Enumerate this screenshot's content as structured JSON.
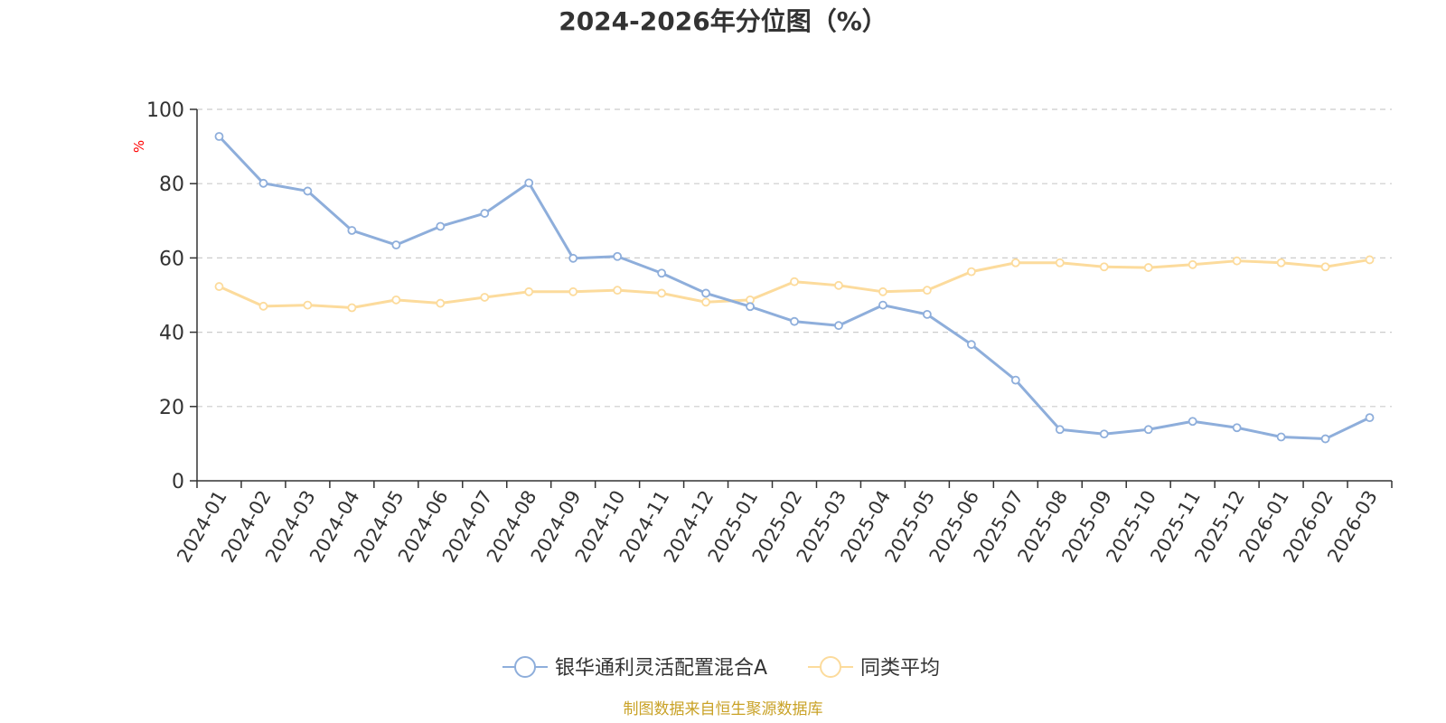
{
  "title": "2024-2026年分位图（%）",
  "source": "制图数据来自恒生聚源数据库",
  "colors": {
    "series1": "#8eaedb",
    "series2": "#fcdb9c",
    "axis": "#333333",
    "grid": "#cccccc",
    "unit": "#ff0000",
    "source": "#c9a227"
  },
  "chart_data": {
    "type": "line",
    "title": "2024-2026年分位图（%）",
    "xlabel": "",
    "ylabel": "%",
    "ylim": [
      0,
      100
    ],
    "yticks": [
      "0",
      "20",
      "40",
      "60",
      "80",
      "100"
    ],
    "grid": true,
    "legend_position": "bottom-center",
    "categories": [
      "2024-01",
      "2024-02",
      "2024-03",
      "2024-04",
      "2024-05",
      "2024-06",
      "2024-07",
      "2024-08",
      "2024-09",
      "2024-10",
      "2024-11",
      "2024-12",
      "2025-01",
      "2025-02",
      "2025-03",
      "2025-04",
      "2025-05",
      "2025-06",
      "2025-07",
      "2025-08",
      "2025-09",
      "2025-10",
      "2025-11",
      "2025-12",
      "2026-01",
      "2026-02",
      "2026-03"
    ],
    "series": [
      {
        "name": "银华通利灵活配置混合A",
        "values": [
          92.7,
          80.1,
          78.0,
          67.4,
          63.5,
          68.5,
          72.0,
          80.2,
          59.9,
          60.4,
          55.9,
          50.5,
          46.9,
          42.9,
          41.8,
          47.3,
          44.8,
          36.7,
          27.1,
          13.8,
          12.6,
          13.8,
          16.0,
          14.3,
          11.8,
          11.3,
          17.0
        ]
      },
      {
        "name": "同类平均",
        "values": [
          52.3,
          47.0,
          47.3,
          46.6,
          48.7,
          47.8,
          49.4,
          50.9,
          50.9,
          51.3,
          50.5,
          48.1,
          48.7,
          53.6,
          52.6,
          50.9,
          51.3,
          56.3,
          58.7,
          58.7,
          57.6,
          57.4,
          58.2,
          59.2,
          58.7,
          57.6,
          59.5
        ]
      }
    ]
  }
}
